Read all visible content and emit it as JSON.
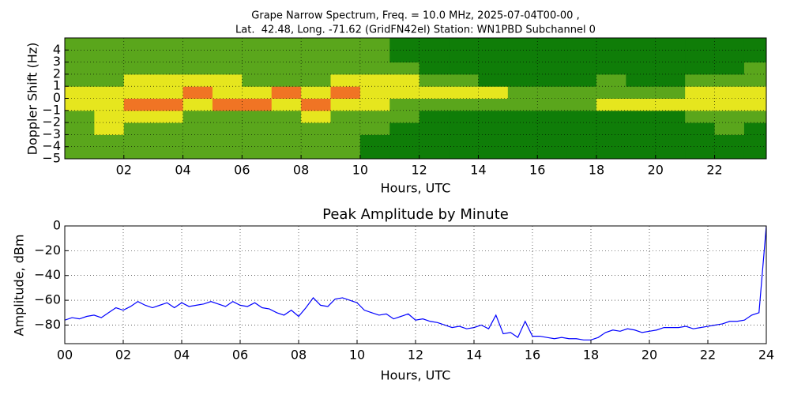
{
  "chart_data": [
    {
      "type": "heatmap",
      "title": [
        "Grape Narrow Spectrum, Freq. = 10.0 MHz, 2025-07-04T00-00 ,",
        "Lat.  42.48, Long. -71.62 (GridFN42el) Station: WN1PBD Subchannel 0"
      ],
      "xlabel": "Hours, UTC",
      "ylabel": "Doppler Shift (Hz)",
      "xlim": [
        0,
        23.75
      ],
      "ylim": [
        -5,
        5
      ],
      "xticks": [
        {
          "value": 2,
          "label": "02"
        },
        {
          "value": 4,
          "label": "04"
        },
        {
          "value": 6,
          "label": "06"
        },
        {
          "value": 8,
          "label": "08"
        },
        10,
        12,
        14,
        16,
        18,
        20,
        22
      ],
      "yticks": [
        {
          "value": -5,
          "label": "−5"
        },
        {
          "value": -4,
          "label": "−4"
        },
        {
          "value": -3,
          "label": "−3"
        },
        {
          "value": -2,
          "label": "−2"
        },
        {
          "value": -1,
          "label": "−1"
        },
        0,
        1,
        2,
        3,
        4
      ],
      "grid": true,
      "colors": [
        "#0f7d08",
        "#5aa61c",
        "#e6e61e",
        "#f07424"
      ],
      "xbins": [
        0,
        1,
        2,
        3,
        4,
        5,
        6,
        7,
        8,
        9,
        10,
        11,
        12,
        13,
        14,
        15,
        16,
        17,
        18,
        19,
        20,
        21,
        22,
        23,
        24
      ],
      "ybins": [
        -5,
        -4,
        -3,
        -2,
        -1,
        0,
        1,
        2,
        3,
        4,
        5
      ],
      "z": [
        [
          1,
          1,
          1,
          1,
          2,
          2,
          1,
          1,
          1,
          1
        ],
        [
          1,
          1,
          2,
          2,
          2,
          2,
          1,
          1,
          1,
          1
        ],
        [
          1,
          1,
          1,
          2,
          3,
          2,
          2,
          1,
          1,
          1
        ],
        [
          1,
          1,
          1,
          2,
          3,
          2,
          2,
          1,
          1,
          1
        ],
        [
          1,
          1,
          1,
          1,
          2,
          3,
          2,
          1,
          1,
          1
        ],
        [
          1,
          1,
          1,
          1,
          3,
          2,
          2,
          1,
          1,
          1
        ],
        [
          1,
          1,
          1,
          1,
          3,
          2,
          1,
          1,
          1,
          1
        ],
        [
          1,
          1,
          1,
          1,
          2,
          3,
          1,
          1,
          1,
          1
        ],
        [
          1,
          1,
          1,
          2,
          3,
          2,
          1,
          1,
          1,
          1
        ],
        [
          1,
          1,
          1,
          1,
          2,
          3,
          2,
          1,
          1,
          1
        ],
        [
          0,
          0,
          1,
          1,
          2,
          2,
          2,
          1,
          1,
          1
        ],
        [
          0,
          0,
          0,
          1,
          1,
          2,
          2,
          1,
          0,
          0
        ],
        [
          0,
          0,
          0,
          0,
          1,
          2,
          1,
          0,
          0,
          0
        ],
        [
          0,
          0,
          0,
          0,
          1,
          2,
          1,
          0,
          0,
          0
        ],
        [
          0,
          0,
          0,
          0,
          1,
          2,
          0,
          0,
          0,
          0
        ],
        [
          0,
          0,
          0,
          0,
          1,
          1,
          0,
          0,
          0,
          0
        ],
        [
          0,
          0,
          0,
          0,
          1,
          1,
          0,
          0,
          0,
          0
        ],
        [
          0,
          0,
          0,
          0,
          1,
          1,
          0,
          0,
          0,
          0
        ],
        [
          0,
          0,
          0,
          0,
          2,
          1,
          1,
          0,
          0,
          0
        ],
        [
          0,
          0,
          0,
          0,
          2,
          1,
          0,
          0,
          0,
          0
        ],
        [
          0,
          0,
          0,
          0,
          2,
          1,
          0,
          0,
          0,
          0
        ],
        [
          0,
          0,
          0,
          1,
          2,
          2,
          1,
          0,
          0,
          0
        ],
        [
          0,
          0,
          1,
          1,
          2,
          2,
          1,
          0,
          0,
          0
        ],
        [
          0,
          0,
          0,
          1,
          2,
          2,
          1,
          1,
          0,
          0
        ]
      ]
    },
    {
      "type": "line",
      "title": "Peak Amplitude by Minute",
      "xlabel": "Hours, UTC",
      "ylabel": "Amplitude, dBm",
      "xlim": [
        0,
        24
      ],
      "ylim": [
        -95,
        0
      ],
      "xticks": [
        {
          "value": 0,
          "label": "00"
        },
        {
          "value": 2,
          "label": "02"
        },
        {
          "value": 4,
          "label": "04"
        },
        {
          "value": 6,
          "label": "06"
        },
        {
          "value": 8,
          "label": "08"
        },
        10,
        12,
        14,
        16,
        18,
        20,
        22,
        24
      ],
      "yticks": [
        0,
        {
          "value": -20,
          "label": "−20"
        },
        {
          "value": -40,
          "label": "−40"
        },
        {
          "value": -60,
          "label": "−60"
        },
        {
          "value": -80,
          "label": "−80"
        }
      ],
      "grid": true,
      "x": [
        0,
        0.25,
        0.5,
        0.75,
        1,
        1.25,
        1.5,
        1.75,
        2,
        2.25,
        2.5,
        2.75,
        3,
        3.25,
        3.5,
        3.75,
        4,
        4.25,
        4.5,
        4.75,
        5,
        5.25,
        5.5,
        5.75,
        6,
        6.25,
        6.5,
        6.75,
        7,
        7.25,
        7.5,
        7.75,
        8,
        8.25,
        8.5,
        8.75,
        9,
        9.25,
        9.5,
        9.75,
        10,
        10.25,
        10.5,
        10.75,
        11,
        11.25,
        11.5,
        11.75,
        12,
        12.25,
        12.5,
        12.75,
        13,
        13.25,
        13.5,
        13.75,
        14,
        14.25,
        14.5,
        14.75,
        15,
        15.25,
        15.5,
        15.75,
        16,
        16.25,
        16.5,
        16.75,
        17,
        17.25,
        17.5,
        17.75,
        18,
        18.25,
        18.5,
        18.75,
        19,
        19.25,
        19.5,
        19.75,
        20,
        20.25,
        20.5,
        20.75,
        21,
        21.25,
        21.5,
        21.75,
        22,
        22.25,
        22.5,
        22.75,
        23,
        23.25,
        23.5,
        23.75,
        24
      ],
      "series": [
        {
          "name": "Peak Amplitude",
          "color": "#0000ff",
          "values": [
            -76,
            -74,
            -75,
            -73,
            -72,
            -74,
            -70,
            -66,
            -68,
            -65,
            -61,
            -64,
            -66,
            -64,
            -62,
            -66,
            -62,
            -65,
            -64,
            -63,
            -61,
            -63,
            -65,
            -61,
            -64,
            -65,
            -62,
            -66,
            -67,
            -70,
            -72,
            -68,
            -73,
            -66,
            -58,
            -64,
            -65,
            -59,
            -58,
            -60,
            -62,
            -68,
            -70,
            -72,
            -71,
            -75,
            -73,
            -71,
            -76,
            -75,
            -77,
            -78,
            -80,
            -82,
            -81,
            -83,
            -82,
            -80,
            -83,
            -72,
            -87,
            -86,
            -90,
            -77,
            -89,
            -89,
            -90,
            -91,
            -90,
            -91,
            -91,
            -92,
            -92,
            -90,
            -86,
            -84,
            -85,
            -83,
            -84,
            -86,
            -85,
            -84,
            -82,
            -82,
            -82,
            -81,
            -83,
            -82,
            -81,
            -80,
            -79,
            -77,
            -77,
            -76,
            -72,
            -70,
            0
          ]
        }
      ]
    }
  ]
}
